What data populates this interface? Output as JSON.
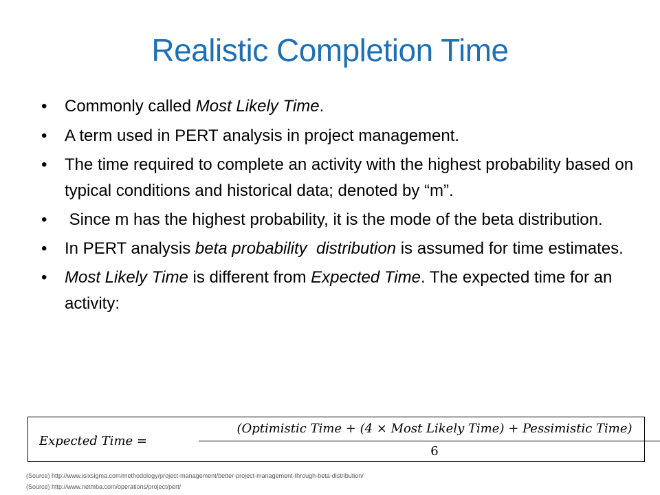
{
  "slide": {
    "title": "Realistic Completion Time",
    "bullets": [
      {
        "pre": "Commonly called ",
        "em": "Most Likely Time",
        "post": "."
      },
      {
        "text": "A term used in PERT analysis in project management."
      },
      {
        "text": "The time required to complete an activity with the highest probability based on typical conditions and historical data; denoted by “m”."
      },
      {
        "text": " Since m has the highest probability, it is the mode of the beta distribution."
      },
      {
        "pre": "In PERT analysis ",
        "em": "beta probability  distribution",
        "post": " is assumed for time estimates."
      },
      {
        "em": "Most Likely Time",
        "mid": " is different from ",
        "em2": "Expected Time",
        "post": ". The expected time for an activity:"
      }
    ],
    "bullet_char": "•",
    "formula": {
      "lhs": "Expected Time =",
      "numerator": "(Optimistic Time + (4 × Most Likely Time) + Pessimistic Time)",
      "denominator": "6"
    },
    "sources": [
      "(Source) http://www.isixsigma.com/methodology/project-management/better-project-management-through-beta-distribution/",
      "(Source) http://www.netmba.com/operations/project/pert/"
    ],
    "colors": {
      "title": "#1f6fb5"
    }
  }
}
